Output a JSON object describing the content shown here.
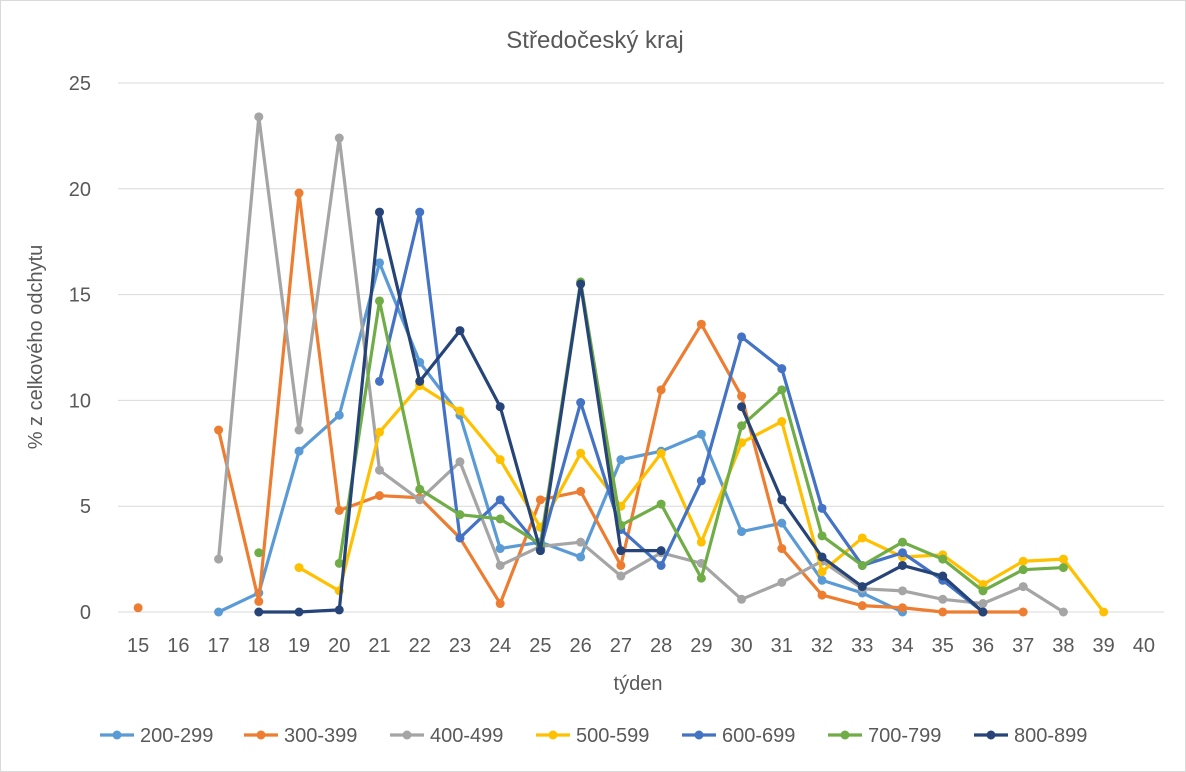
{
  "chart_data": {
    "type": "line",
    "title": "Středočeský kraj",
    "xlabel": "týden",
    "ylabel": "% z celkového odchytu",
    "categories": [
      "15",
      "16",
      "17",
      "18",
      "19",
      "20",
      "21",
      "22",
      "23",
      "24",
      "25",
      "26",
      "27",
      "28",
      "29",
      "30",
      "31",
      "32",
      "33",
      "34",
      "35",
      "36",
      "37",
      "38",
      "39",
      "40"
    ],
    "ylim": [
      0,
      25
    ],
    "yticks": [
      0,
      5,
      10,
      15,
      20,
      25
    ],
    "grid": true,
    "legend_position": "bottom",
    "series": [
      {
        "name": "200-299",
        "color": "#5B9BD5",
        "values": [
          null,
          null,
          0.0,
          0.9,
          7.6,
          9.3,
          16.5,
          11.8,
          9.3,
          3.0,
          3.3,
          2.6,
          7.2,
          7.6,
          8.4,
          3.8,
          4.2,
          1.5,
          0.9,
          0.0,
          null,
          null,
          null,
          null,
          null,
          null
        ]
      },
      {
        "name": "300-399",
        "color": "#ED7D31",
        "values": [
          0.2,
          null,
          8.6,
          0.5,
          19.8,
          4.8,
          5.5,
          5.4,
          3.5,
          0.4,
          5.3,
          5.7,
          2.2,
          10.5,
          13.6,
          10.2,
          3.0,
          0.8,
          0.3,
          0.2,
          0.0,
          0.0,
          0.0,
          null,
          null,
          null
        ]
      },
      {
        "name": "400-499",
        "color": "#A5A5A5",
        "values": [
          null,
          null,
          2.5,
          23.4,
          8.6,
          22.4,
          6.7,
          5.3,
          7.1,
          2.2,
          3.1,
          3.3,
          1.7,
          2.8,
          2.3,
          0.6,
          1.4,
          2.4,
          1.1,
          1.0,
          0.6,
          0.4,
          1.2,
          0.0,
          null,
          null
        ]
      },
      {
        "name": "500-599",
        "color": "#FFC000",
        "values": [
          null,
          null,
          null,
          null,
          2.1,
          1.0,
          8.5,
          10.7,
          9.5,
          7.2,
          4.0,
          7.5,
          5.0,
          7.5,
          3.3,
          8.0,
          9.0,
          1.9,
          3.5,
          2.6,
          2.7,
          1.3,
          2.4,
          2.5,
          0.0,
          null
        ]
      },
      {
        "name": "600-699",
        "color": "#4472C4",
        "values": [
          null,
          null,
          null,
          null,
          null,
          null,
          10.9,
          18.9,
          3.5,
          5.3,
          3.0,
          9.9,
          3.9,
          2.2,
          6.2,
          13.0,
          11.5,
          4.9,
          2.2,
          2.8,
          1.5,
          0.0,
          null,
          null,
          null,
          null
        ]
      },
      {
        "name": "700-799",
        "color": "#70AD47",
        "values": [
          null,
          null,
          null,
          2.8,
          null,
          2.3,
          14.7,
          5.8,
          4.6,
          4.4,
          3.2,
          15.6,
          4.1,
          5.1,
          1.6,
          8.8,
          10.5,
          3.6,
          2.2,
          3.3,
          2.5,
          1.0,
          2.0,
          2.1,
          null,
          null
        ]
      },
      {
        "name": "800-899",
        "color": "#264478",
        "values": [
          null,
          null,
          null,
          0.0,
          0.0,
          0.1,
          18.9,
          10.9,
          13.3,
          9.7,
          2.9,
          15.5,
          2.9,
          2.9,
          null,
          9.7,
          5.3,
          2.6,
          1.2,
          2.2,
          1.7,
          0.0,
          null,
          null,
          null,
          null
        ]
      }
    ]
  }
}
